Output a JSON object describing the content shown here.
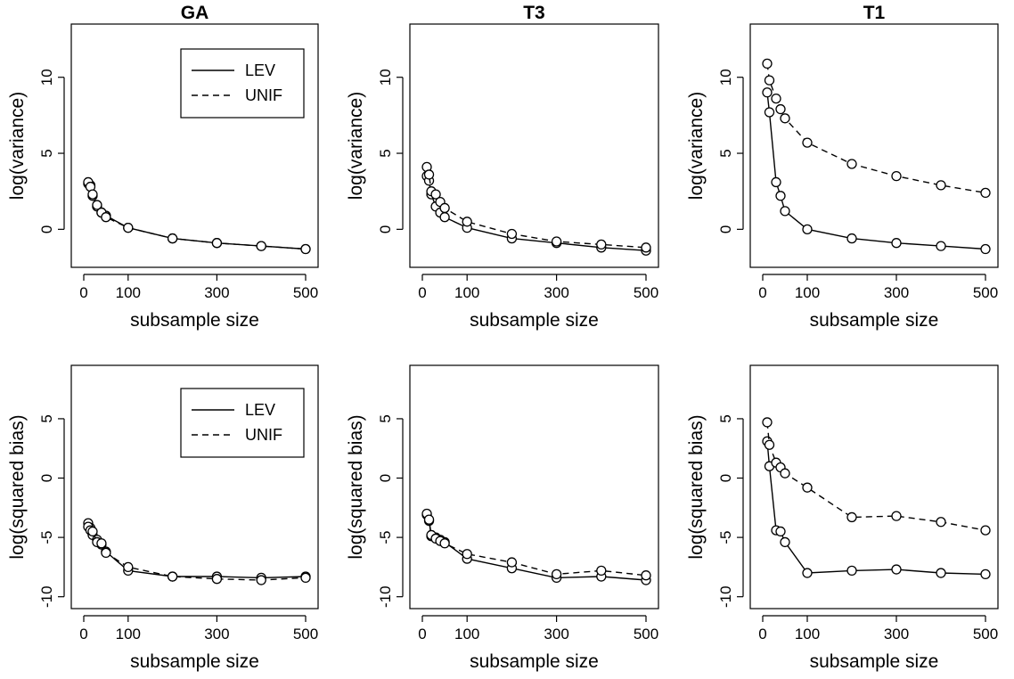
{
  "chart_data": [
    {
      "type": "line",
      "title": "GA",
      "xlabel": "subsample size",
      "ylabel": "log(variance)",
      "xlim": [
        0,
        500
      ],
      "ylim": [
        -2.5,
        13.5
      ],
      "xticks": [
        0,
        100,
        300,
        500
      ],
      "yticks": [
        0,
        5,
        10
      ],
      "legend": {
        "position": "top-right",
        "entries": [
          {
            "label": "LEV",
            "style": "solid"
          },
          {
            "label": "UNIF",
            "style": "dashed"
          }
        ]
      },
      "series": [
        {
          "name": "LEV",
          "style": "solid",
          "points": [
            [
              10,
              3.0
            ],
            [
              15,
              2.9
            ],
            [
              20,
              2.2
            ],
            [
              30,
              1.5
            ],
            [
              40,
              1.1
            ],
            [
              50,
              0.9
            ],
            [
              100,
              0.1
            ],
            [
              200,
              -0.6
            ],
            [
              300,
              -0.9
            ],
            [
              400,
              -1.1
            ],
            [
              500,
              -1.3
            ]
          ]
        },
        {
          "name": "UNIF",
          "style": "dashed",
          "points": [
            [
              10,
              3.1
            ],
            [
              15,
              2.8
            ],
            [
              20,
              2.3
            ],
            [
              30,
              1.6
            ],
            [
              40,
              1.1
            ],
            [
              50,
              0.8
            ],
            [
              100,
              0.1
            ],
            [
              200,
              -0.6
            ],
            [
              300,
              -0.9
            ],
            [
              400,
              -1.1
            ],
            [
              500,
              -1.3
            ]
          ]
        }
      ]
    },
    {
      "type": "line",
      "title": "T3",
      "xlabel": "subsample size",
      "ylabel": "log(variance)",
      "xlim": [
        0,
        500
      ],
      "ylim": [
        -2.5,
        13.5
      ],
      "xticks": [
        0,
        100,
        300,
        500
      ],
      "yticks": [
        0,
        5,
        10
      ],
      "series": [
        {
          "name": "LEV",
          "style": "solid",
          "points": [
            [
              10,
              3.5
            ],
            [
              15,
              3.2
            ],
            [
              20,
              2.3
            ],
            [
              30,
              1.5
            ],
            [
              40,
              1.1
            ],
            [
              50,
              0.8
            ],
            [
              100,
              0.1
            ],
            [
              200,
              -0.6
            ],
            [
              300,
              -0.9
            ],
            [
              400,
              -1.2
            ],
            [
              500,
              -1.4
            ]
          ]
        },
        {
          "name": "UNIF",
          "style": "dashed",
          "points": [
            [
              10,
              4.1
            ],
            [
              15,
              3.6
            ],
            [
              20,
              2.5
            ],
            [
              30,
              2.3
            ],
            [
              40,
              1.8
            ],
            [
              50,
              1.4
            ],
            [
              100,
              0.5
            ],
            [
              200,
              -0.3
            ],
            [
              300,
              -0.8
            ],
            [
              400,
              -1.0
            ],
            [
              500,
              -1.2
            ]
          ]
        }
      ]
    },
    {
      "type": "line",
      "title": "T1",
      "xlabel": "subsample size",
      "ylabel": "log(variance)",
      "xlim": [
        0,
        500
      ],
      "ylim": [
        -2.5,
        13.5
      ],
      "xticks": [
        0,
        100,
        300,
        500
      ],
      "yticks": [
        0,
        5,
        10
      ],
      "series": [
        {
          "name": "LEV",
          "style": "solid",
          "points": [
            [
              10,
              9.0
            ],
            [
              15,
              7.7
            ],
            [
              30,
              3.1
            ],
            [
              40,
              2.2
            ],
            [
              50,
              1.2
            ],
            [
              100,
              0.0
            ],
            [
              200,
              -0.6
            ],
            [
              300,
              -0.9
            ],
            [
              400,
              -1.1
            ],
            [
              500,
              -1.3
            ]
          ]
        },
        {
          "name": "UNIF",
          "style": "dashed",
          "points": [
            [
              10,
              10.9
            ],
            [
              15,
              9.8
            ],
            [
              30,
              8.6
            ],
            [
              40,
              7.9
            ],
            [
              50,
              7.3
            ],
            [
              100,
              5.7
            ],
            [
              200,
              4.3
            ],
            [
              300,
              3.5
            ],
            [
              400,
              2.9
            ],
            [
              500,
              2.4
            ]
          ]
        }
      ]
    },
    {
      "type": "line",
      "title": "",
      "xlabel": "subsample size",
      "ylabel": "log(squared bias)",
      "xlim": [
        0,
        500
      ],
      "ylim": [
        -11,
        9.5
      ],
      "xticks": [
        0,
        100,
        300,
        500
      ],
      "yticks": [
        -10,
        -5,
        0,
        5
      ],
      "legend": {
        "position": "top-right",
        "entries": [
          {
            "label": "LEV",
            "style": "solid"
          },
          {
            "label": "UNIF",
            "style": "dashed"
          }
        ]
      },
      "series": [
        {
          "name": "LEV",
          "style": "solid",
          "points": [
            [
              10,
              -3.8
            ],
            [
              15,
              -4.2
            ],
            [
              20,
              -4.8
            ],
            [
              30,
              -5.2
            ],
            [
              40,
              -5.6
            ],
            [
              50,
              -6.2
            ],
            [
              100,
              -7.8
            ],
            [
              200,
              -8.3
            ],
            [
              300,
              -8.3
            ],
            [
              400,
              -8.4
            ],
            [
              500,
              -8.3
            ]
          ]
        },
        {
          "name": "UNIF",
          "style": "dashed",
          "points": [
            [
              10,
              -4.1
            ],
            [
              15,
              -4.4
            ],
            [
              20,
              -4.5
            ],
            [
              30,
              -5.4
            ],
            [
              40,
              -5.5
            ],
            [
              50,
              -6.3
            ],
            [
              100,
              -7.5
            ],
            [
              200,
              -8.3
            ],
            [
              300,
              -8.5
            ],
            [
              400,
              -8.6
            ],
            [
              500,
              -8.4
            ]
          ]
        }
      ]
    },
    {
      "type": "line",
      "title": "",
      "xlabel": "subsample size",
      "ylabel": "log(squared bias)",
      "xlim": [
        0,
        500
      ],
      "ylim": [
        -11,
        9.5
      ],
      "xticks": [
        0,
        100,
        300,
        500
      ],
      "yticks": [
        -10,
        -5,
        0,
        5
      ],
      "series": [
        {
          "name": "LEV",
          "style": "solid",
          "points": [
            [
              10,
              -3.1
            ],
            [
              15,
              -3.6
            ],
            [
              20,
              -4.9
            ],
            [
              30,
              -5.0
            ],
            [
              40,
              -5.2
            ],
            [
              50,
              -5.4
            ],
            [
              100,
              -6.8
            ],
            [
              200,
              -7.6
            ],
            [
              300,
              -8.4
            ],
            [
              400,
              -8.3
            ],
            [
              500,
              -8.6
            ]
          ]
        },
        {
          "name": "UNIF",
          "style": "dashed",
          "points": [
            [
              10,
              -3.0
            ],
            [
              15,
              -3.5
            ],
            [
              20,
              -4.8
            ],
            [
              30,
              -5.1
            ],
            [
              40,
              -5.3
            ],
            [
              50,
              -5.5
            ],
            [
              100,
              -6.4
            ],
            [
              200,
              -7.1
            ],
            [
              300,
              -8.1
            ],
            [
              400,
              -7.8
            ],
            [
              500,
              -8.2
            ]
          ]
        }
      ]
    },
    {
      "type": "line",
      "title": "",
      "xlabel": "subsample size",
      "ylabel": "log(squared bias)",
      "xlim": [
        0,
        500
      ],
      "ylim": [
        -11,
        9.5
      ],
      "xticks": [
        0,
        100,
        300,
        500
      ],
      "yticks": [
        -10,
        -5,
        0,
        5
      ],
      "series": [
        {
          "name": "LEV",
          "style": "solid",
          "points": [
            [
              10,
              3.1
            ],
            [
              15,
              1.0
            ],
            [
              30,
              -4.4
            ],
            [
              40,
              -4.5
            ],
            [
              50,
              -5.4
            ],
            [
              100,
              -8.0
            ],
            [
              200,
              -7.8
            ],
            [
              300,
              -7.7
            ],
            [
              400,
              -8.0
            ],
            [
              500,
              -8.1
            ]
          ]
        },
        {
          "name": "UNIF",
          "style": "dashed",
          "points": [
            [
              10,
              4.7
            ],
            [
              15,
              2.8
            ],
            [
              30,
              1.3
            ],
            [
              40,
              0.9
            ],
            [
              50,
              0.4
            ],
            [
              100,
              -0.8
            ],
            [
              200,
              -3.3
            ],
            [
              300,
              -3.2
            ],
            [
              400,
              -3.7
            ],
            [
              500,
              -4.4
            ]
          ]
        }
      ]
    }
  ]
}
